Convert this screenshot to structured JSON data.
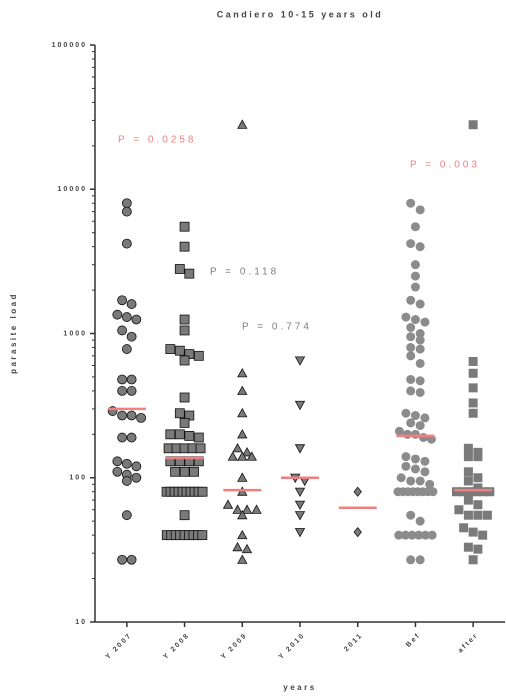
{
  "chart_data": {
    "type": "dot",
    "title": "Candiero 10-15 years old",
    "x_label": "years",
    "y_label": "parasite load",
    "yscale": "log",
    "ylim": [
      10,
      100000
    ],
    "yticks": [
      10,
      100,
      1000,
      10000,
      100000
    ],
    "categories": [
      "Y 2007",
      "Y 2008",
      "Y 2009",
      "Y 2010",
      "2011",
      "Bef",
      "after"
    ],
    "markers": [
      "circle",
      "square",
      "triangle-up",
      "triangle-down",
      "diamond",
      "circle",
      "square"
    ],
    "colors": [
      "#7a7a7a",
      "#7a7a7a",
      "#7a7a7a",
      "#7a7a7a",
      "#7a7a7a",
      "#8c8c8c",
      "#7a7a7a"
    ],
    "outlined": [
      true,
      true,
      true,
      true,
      true,
      false,
      false
    ],
    "median_color": "#f08080",
    "medians": [
      300,
      137,
      82,
      100,
      62,
      195,
      82
    ],
    "points": [
      [
        8000,
        7000,
        4200,
        1700,
        1600,
        1350,
        1250,
        1300,
        1050,
        950,
        780,
        480,
        480,
        400,
        400,
        290,
        270,
        270,
        260,
        190,
        190,
        130,
        125,
        120,
        110,
        105,
        100,
        95,
        55,
        27,
        27
      ],
      [
        5500,
        4000,
        2800,
        2600,
        1250,
        1050,
        780,
        760,
        720,
        700,
        650,
        360,
        280,
        270,
        240,
        200,
        195,
        190,
        200,
        160,
        160,
        160,
        160,
        160,
        130,
        130,
        130,
        130,
        110,
        110,
        110,
        80,
        80,
        80,
        80,
        80,
        80,
        80,
        80,
        80,
        80,
        55,
        40,
        40,
        40,
        40,
        40,
        40,
        40,
        40,
        40
      ],
      [
        28000,
        530,
        400,
        280,
        200,
        160,
        150,
        140,
        140,
        140,
        100,
        80,
        65,
        60,
        60,
        60,
        55,
        40,
        33,
        32,
        27
      ],
      [
        650,
        320,
        160,
        100,
        95,
        80,
        65,
        55,
        42
      ],
      [
        80,
        42
      ],
      [
        8000,
        7200,
        5500,
        4200,
        4000,
        3000,
        2500,
        2100,
        1700,
        1600,
        1300,
        1250,
        1200,
        1100,
        1000,
        950,
        900,
        800,
        780,
        700,
        620,
        480,
        470,
        400,
        390,
        280,
        270,
        260,
        240,
        230,
        210,
        200,
        200,
        190,
        185,
        140,
        135,
        130,
        120,
        115,
        110,
        100,
        95,
        95,
        90,
        80,
        80,
        80,
        80,
        80,
        80,
        80,
        80,
        55,
        50,
        40,
        40,
        40,
        40,
        40,
        40,
        27,
        27
      ],
      [
        28000,
        640,
        530,
        420,
        330,
        280,
        160,
        150,
        140,
        140,
        110,
        100,
        95,
        85,
        80,
        80,
        80,
        80,
        80,
        80,
        70,
        65,
        60,
        55,
        55,
        55,
        45,
        42,
        40,
        33,
        32,
        27
      ]
    ],
    "annotations": [
      {
        "text": "P = 0.0258",
        "color": "#f08080"
      },
      {
        "text": "P = 0.118",
        "color": "#808080"
      },
      {
        "text": "P = 0.774",
        "color": "#808080"
      },
      {
        "text": "P = 0.003",
        "color": "#f08080"
      }
    ]
  }
}
